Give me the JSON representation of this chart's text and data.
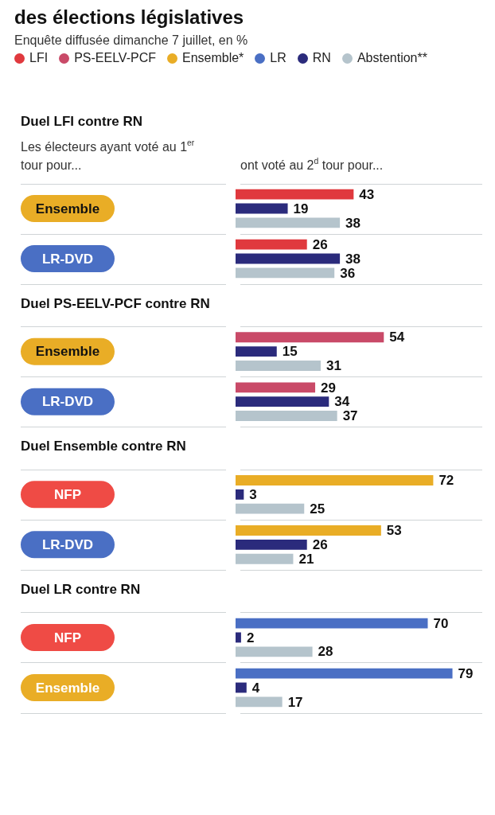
{
  "chart_data": {
    "type": "bar",
    "orientation": "horizontal",
    "title": "des élections législatives",
    "subtitle": "Enquête diffusée dimanche 7 juillet, en %",
    "categories": [
      "Ensemble",
      "LR-DVD",
      "Ensemble",
      "LR-DVD",
      "NFP",
      "LR-DVD",
      "NFP",
      "Ensemble"
    ],
    "series": [
      {
        "name": "LFI",
        "color": "#e0393e",
        "values": [
          43,
          26,
          null,
          null,
          null,
          null,
          null,
          null
        ]
      },
      {
        "name": "PS-EELV-PCF",
        "color": "#c94a68",
        "values": [
          null,
          null,
          54,
          29,
          null,
          null,
          null,
          null
        ]
      },
      {
        "name": "Ensemble*",
        "color": "#e9ad26",
        "values": [
          null,
          null,
          null,
          null,
          72,
          53,
          null,
          null
        ]
      },
      {
        "name": "LR",
        "color": "#4a6fc4",
        "values": [
          null,
          null,
          null,
          null,
          null,
          null,
          70,
          79
        ]
      },
      {
        "name": "RN",
        "color": "#2b2b7c",
        "values": [
          19,
          38,
          15,
          34,
          3,
          26,
          2,
          4
        ]
      },
      {
        "name": "Abstention**",
        "color": "#b5c4cc",
        "values": [
          38,
          36,
          31,
          37,
          25,
          21,
          28,
          17
        ]
      }
    ],
    "annotations": [
      "Duel LFI contre RN",
      "Duel PS-EELV-PCF contre RN",
      "Duel Ensemble contre RN",
      "Duel LR contre RN",
      "Les électeurs ayant voté au 1$^{er}$ tour pour...",
      "ont voté au 2$^{d}$ tour pour..."
    ],
    "data_labels": true,
    "legend": "top"
  }
}
